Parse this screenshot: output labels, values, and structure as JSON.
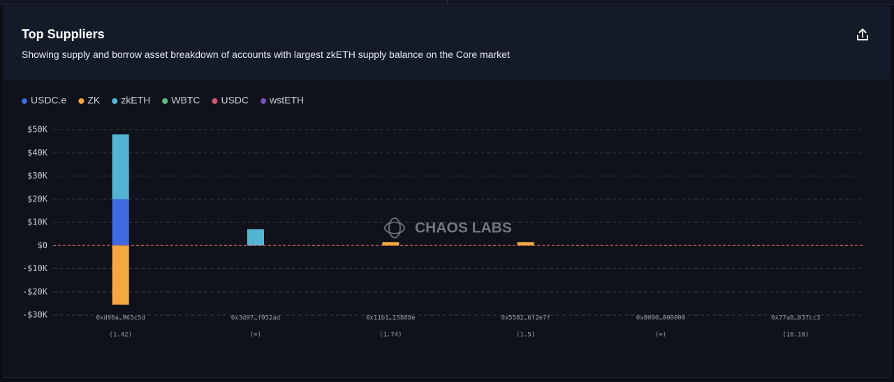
{
  "title": "Top Suppliers",
  "subtitle": "Showing supply and borrow asset breakdown of accounts with largest zkETH supply balance on the Core market",
  "chart_data": {
    "type": "bar",
    "stacked": true,
    "watermark": "CHAOS LABS",
    "categories": [
      "0xd98a…963c5d",
      "0x3d97…f052ad",
      "0x11b1…15888e",
      "0x5582…6f2e7f",
      "0x0000…000000",
      "0x77a8…037cc3"
    ],
    "category_sublabels": [
      "(1.42)",
      "(∞)",
      "(1.74)",
      "(1.5)",
      "(∞)",
      "(16.18)"
    ],
    "series": [
      {
        "name": "USDC.e",
        "color": "#3f6ae0",
        "values": [
          20000,
          0,
          0,
          0,
          0,
          0
        ]
      },
      {
        "name": "ZK",
        "color": "#f5a742",
        "values": [
          -25500,
          0,
          1500,
          1500,
          0,
          0
        ]
      },
      {
        "name": "zkETH",
        "color": "#56b4d3",
        "values": [
          28000,
          7000,
          0,
          0,
          0,
          0
        ]
      },
      {
        "name": "WBTC",
        "color": "#5cbf7f",
        "values": [
          0,
          0,
          0,
          0,
          0,
          0
        ]
      },
      {
        "name": "USDC",
        "color": "#d9546b",
        "values": [
          0,
          0,
          0,
          0,
          0,
          0
        ]
      },
      {
        "name": "wstETH",
        "color": "#7b4fb5",
        "values": [
          0,
          0,
          0,
          0,
          0,
          0
        ]
      }
    ],
    "ylim": [
      -30000,
      50000
    ],
    "yticks": [
      {
        "value": -30000,
        "label": "-$30K"
      },
      {
        "value": -20000,
        "label": "-$20K"
      },
      {
        "value": -10000,
        "label": "-$10K"
      },
      {
        "value": 0,
        "label": "$0"
      },
      {
        "value": 10000,
        "label": "$10K"
      },
      {
        "value": 20000,
        "label": "$20K"
      },
      {
        "value": 30000,
        "label": "$30K"
      },
      {
        "value": 40000,
        "label": "$40K"
      },
      {
        "value": 50000,
        "label": "$50K"
      }
    ],
    "grid": true,
    "legend": "top-left"
  }
}
